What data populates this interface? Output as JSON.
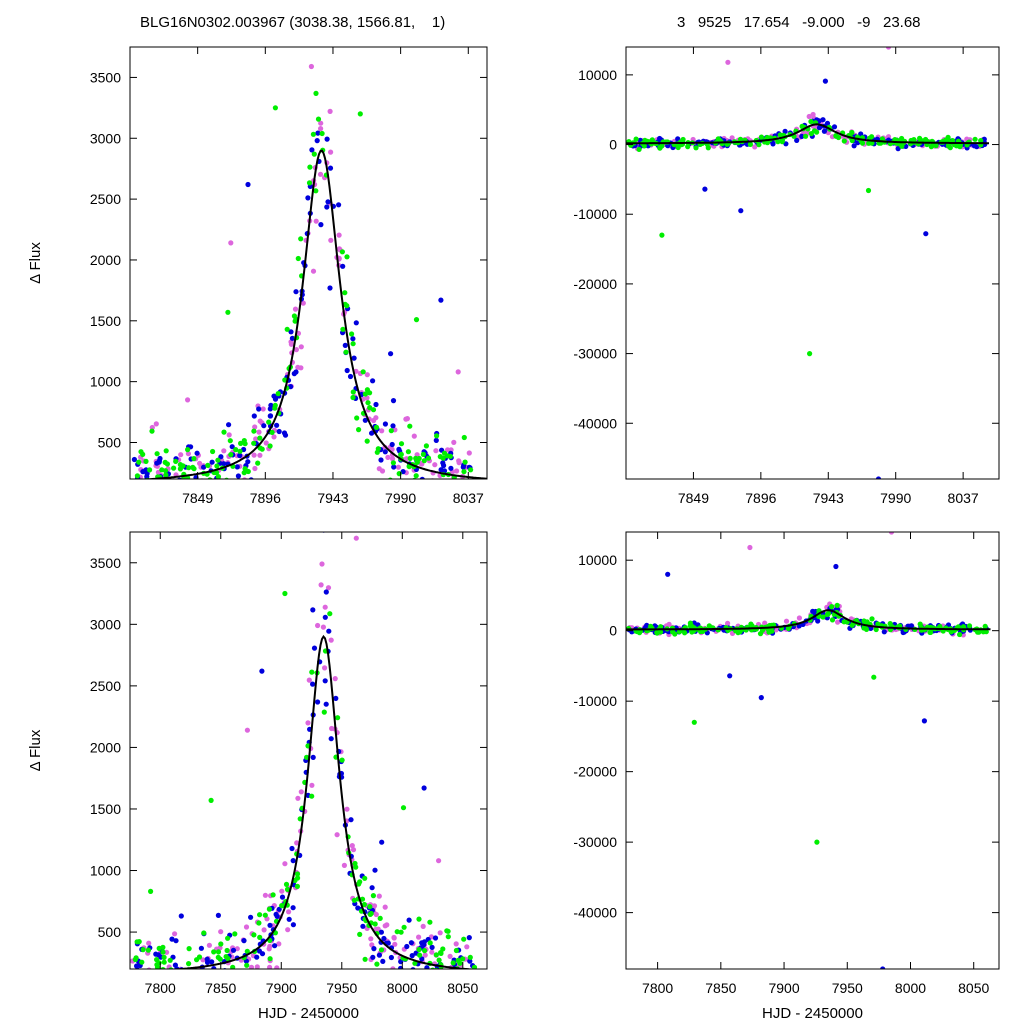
{
  "header": {
    "left": "BLG16N0302.003967 (3038.38, 1566.81,    1)",
    "right": "3   9525   17.654   -9.000   -9   23.68"
  },
  "colors": {
    "series_a": "#dd66dd",
    "series_b": "#0000dd",
    "series_c": "#00ee00",
    "model": "#000000"
  },
  "model": {
    "t0": 7935,
    "tE_width": 16,
    "amplitude": 2750,
    "baseline": 150
  },
  "chart_data": [
    {
      "type": "scatter",
      "panel": "top-left",
      "xlabel": "",
      "ylabel": "Δ Flux",
      "xlim": [
        7802,
        8050
      ],
      "ylim": [
        200,
        3750
      ],
      "xticks": [
        7849,
        7896,
        7943,
        7990,
        8037
      ],
      "yticks": [
        500,
        1000,
        1500,
        2000,
        2500,
        3000,
        3500
      ],
      "series": [
        {
          "color": "#dd66dd",
          "count": 170,
          "seed": 11
        },
        {
          "color": "#0000dd",
          "count": 170,
          "seed": 23
        },
        {
          "color": "#00ee00",
          "count": 170,
          "seed": 37
        }
      ],
      "outliers": [
        {
          "x": 7842,
          "y": 850,
          "color": "#dd66dd"
        },
        {
          "x": 7872,
          "y": 2140,
          "color": "#dd66dd"
        },
        {
          "x": 7884,
          "y": 2620,
          "color": "#0000dd"
        },
        {
          "x": 7910,
          "y": 560,
          "color": "#0000dd"
        },
        {
          "x": 7870,
          "y": 1570,
          "color": "#00ee00"
        },
        {
          "x": 7983,
          "y": 1230,
          "color": "#0000dd"
        },
        {
          "x": 8018,
          "y": 1670,
          "color": "#0000dd"
        },
        {
          "x": 8030,
          "y": 1080,
          "color": "#dd66dd"
        },
        {
          "x": 8001,
          "y": 1510,
          "color": "#00ee00"
        },
        {
          "x": 7962,
          "y": 3200,
          "color": "#00ee00"
        },
        {
          "x": 7928,
          "y": 3590,
          "color": "#dd66dd"
        },
        {
          "x": 7903,
          "y": 3250,
          "color": "#00ee00"
        }
      ]
    },
    {
      "type": "scatter",
      "panel": "top-right",
      "xlabel": "",
      "ylabel": "",
      "xlim": [
        7802,
        8062
      ],
      "ylim": [
        -48000,
        14000
      ],
      "xticks": [
        7849,
        7896,
        7943,
        7990,
        8037
      ],
      "yticks": [
        10000,
        0,
        -10000,
        -20000,
        -30000,
        -40000
      ],
      "series": [
        {
          "color": "#dd66dd",
          "count": 150,
          "seed": 41
        },
        {
          "color": "#0000dd",
          "count": 150,
          "seed": 53
        },
        {
          "color": "#00ee00",
          "count": 170,
          "seed": 67
        }
      ],
      "outliers": [
        {
          "x": 7873,
          "y": 11800,
          "color": "#dd66dd"
        },
        {
          "x": 7985,
          "y": 14000,
          "color": "#dd66dd"
        },
        {
          "x": 7941,
          "y": 9100,
          "color": "#0000dd"
        },
        {
          "x": 7882,
          "y": -9500,
          "color": "#0000dd"
        },
        {
          "x": 7930,
          "y": -30000,
          "color": "#00ee00"
        },
        {
          "x": 8011,
          "y": -12800,
          "color": "#0000dd"
        },
        {
          "x": 7827,
          "y": -13000,
          "color": "#00ee00"
        },
        {
          "x": 7857,
          "y": -6400,
          "color": "#0000dd"
        },
        {
          "x": 7971,
          "y": -6600,
          "color": "#00ee00"
        },
        {
          "x": 7978,
          "y": -48000,
          "color": "#0000dd"
        }
      ]
    },
    {
      "type": "scatter",
      "panel": "bottom-left",
      "xlabel": "HJD - 2450000",
      "ylabel": "Δ Flux",
      "xlim": [
        7775,
        8070
      ],
      "ylim": [
        200,
        3750
      ],
      "xticks": [
        7800,
        7850,
        7900,
        7950,
        8000,
        8050
      ],
      "yticks": [
        500,
        1000,
        1500,
        2000,
        2500,
        3000,
        3500
      ],
      "series": [
        {
          "color": "#dd66dd",
          "count": 170,
          "seed": 71
        },
        {
          "color": "#0000dd",
          "count": 170,
          "seed": 83
        },
        {
          "color": "#00ee00",
          "count": 170,
          "seed": 97
        }
      ],
      "outliers": [
        {
          "x": 7792,
          "y": 830,
          "color": "#00ee00"
        },
        {
          "x": 7842,
          "y": 1570,
          "color": "#00ee00"
        },
        {
          "x": 7872,
          "y": 2140,
          "color": "#dd66dd"
        },
        {
          "x": 7884,
          "y": 2620,
          "color": "#0000dd"
        },
        {
          "x": 7910,
          "y": 560,
          "color": "#0000dd"
        },
        {
          "x": 7983,
          "y": 1230,
          "color": "#0000dd"
        },
        {
          "x": 8018,
          "y": 1670,
          "color": "#0000dd"
        },
        {
          "x": 8030,
          "y": 1080,
          "color": "#dd66dd"
        },
        {
          "x": 8001,
          "y": 1510,
          "color": "#00ee00"
        },
        {
          "x": 7962,
          "y": 3700,
          "color": "#dd66dd"
        },
        {
          "x": 7903,
          "y": 3250,
          "color": "#00ee00"
        }
      ]
    },
    {
      "type": "scatter",
      "panel": "bottom-right",
      "xlabel": "HJD - 2450000",
      "ylabel": "",
      "xlim": [
        7775,
        8070
      ],
      "ylim": [
        -48000,
        14000
      ],
      "xticks": [
        7800,
        7850,
        7900,
        7950,
        8000,
        8050
      ],
      "yticks": [
        10000,
        0,
        -10000,
        -20000,
        -30000,
        -40000
      ],
      "series": [
        {
          "color": "#dd66dd",
          "count": 150,
          "seed": 101
        },
        {
          "color": "#0000dd",
          "count": 150,
          "seed": 113
        },
        {
          "color": "#00ee00",
          "count": 170,
          "seed": 127
        }
      ],
      "outliers": [
        {
          "x": 7808,
          "y": 8000,
          "color": "#0000dd"
        },
        {
          "x": 7873,
          "y": 11800,
          "color": "#dd66dd"
        },
        {
          "x": 7985,
          "y": 14000,
          "color": "#dd66dd"
        },
        {
          "x": 7941,
          "y": 9100,
          "color": "#0000dd"
        },
        {
          "x": 7882,
          "y": -9500,
          "color": "#0000dd"
        },
        {
          "x": 7926,
          "y": -30000,
          "color": "#00ee00"
        },
        {
          "x": 8011,
          "y": -12800,
          "color": "#0000dd"
        },
        {
          "x": 7829,
          "y": -13000,
          "color": "#00ee00"
        },
        {
          "x": 7857,
          "y": -6400,
          "color": "#0000dd"
        },
        {
          "x": 7971,
          "y": -6600,
          "color": "#00ee00"
        },
        {
          "x": 7978,
          "y": -48000,
          "color": "#0000dd"
        }
      ]
    }
  ]
}
